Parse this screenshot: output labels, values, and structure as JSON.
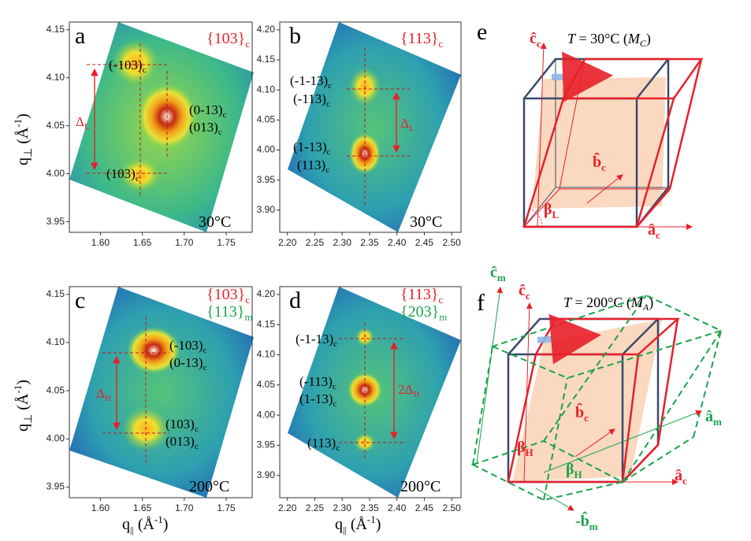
{
  "panels": [
    {
      "letter": "a",
      "family": "{103}",
      "family_sub": "c",
      "temperature": "30°C",
      "xlim": [
        1.563,
        1.781
      ],
      "ylim": [
        3.939,
        4.158
      ],
      "xticks": [
        {
          "value": 1.6,
          "label": "1.60"
        },
        1.65,
        {
          "value": 1.7,
          "label": "1.70"
        },
        1.75
      ],
      "yticks": [
        4.15,
        {
          "value": 4.1,
          "label": "4.10"
        },
        4.05,
        {
          "value": 4.0,
          "label": "4.00"
        },
        3.95
      ],
      "peaks": [
        {
          "label": "(-103)",
          "sub": "c"
        },
        {
          "label": "(0-13)",
          "sub": "c"
        },
        {
          "label": "(013)",
          "sub": "c"
        },
        {
          "label": "(103)",
          "sub": "c"
        }
      ],
      "spacing": {
        "label": "Δ",
        "sub": "L"
      }
    },
    {
      "letter": "b",
      "family": "{113}",
      "family_sub": "c",
      "temperature": "30°C",
      "xlim": [
        2.186,
        2.517
      ],
      "ylim": [
        3.863,
        4.213
      ],
      "xticks": [
        {
          "value": 2.2,
          "label": "2.20"
        },
        2.25,
        {
          "value": 2.3,
          "label": "2.30"
        },
        2.35,
        {
          "value": 2.4,
          "label": "2.40"
        },
        2.45,
        {
          "value": 2.5,
          "label": "2.50"
        }
      ],
      "yticks": [
        {
          "value": 4.2,
          "label": "4.20"
        },
        4.15,
        {
          "value": 4.1,
          "label": "4.10"
        },
        4.05,
        {
          "value": 4.0,
          "label": "4.00"
        },
        3.95,
        {
          "value": 3.9,
          "label": "3.90"
        }
      ],
      "peaks": [
        {
          "label": "(-1-13)",
          "sub": "c"
        },
        {
          "label": "(-113)",
          "sub": "c"
        },
        {
          "label": "(1-13)",
          "sub": "c"
        },
        {
          "label": "(113)",
          "sub": "c"
        }
      ],
      "spacing": {
        "label": "Δ",
        "sub": "L"
      }
    },
    {
      "letter": "c",
      "family": "{103}",
      "family_sub": "c",
      "family2": "{113}",
      "family2_sub": "m",
      "temperature": "200°C",
      "xlim": [
        1.563,
        1.781
      ],
      "ylim": [
        3.939,
        4.158
      ],
      "xticks": [
        {
          "value": 1.6,
          "label": "1.60"
        },
        1.65,
        {
          "value": 1.7,
          "label": "1.70"
        },
        1.75
      ],
      "yticks": [
        4.15,
        {
          "value": 4.1,
          "label": "4.10"
        },
        4.05,
        {
          "value": 4.0,
          "label": "4.00"
        },
        3.95
      ],
      "peaks": [
        {
          "label": "(-103)",
          "sub": "c"
        },
        {
          "label": "(0-13)",
          "sub": "c"
        },
        {
          "label": "(103)",
          "sub": "c"
        },
        {
          "label": "(013)",
          "sub": "c"
        }
      ],
      "spacing": {
        "label": "Δ",
        "sub": "H"
      }
    },
    {
      "letter": "d",
      "family": "{113}",
      "family_sub": "c",
      "family2": "{203}",
      "family2_sub": "m",
      "temperature": "200°C",
      "xlim": [
        2.186,
        2.517
      ],
      "ylim": [
        3.863,
        4.213
      ],
      "xticks": [
        {
          "value": 2.2,
          "label": "2.20"
        },
        2.25,
        {
          "value": 2.3,
          "label": "2.30"
        },
        2.35,
        {
          "value": 2.4,
          "label": "2.40"
        },
        2.45,
        {
          "value": 2.5,
          "label": "2.50"
        }
      ],
      "yticks": [
        {
          "value": 4.2,
          "label": "4.20"
        },
        4.15,
        {
          "value": 4.1,
          "label": "4.10"
        },
        4.05,
        {
          "value": 4.0,
          "label": "4.00"
        },
        3.95,
        {
          "value": 3.9,
          "label": "3.90"
        }
      ],
      "peaks": [
        {
          "label": "(-1-13)",
          "sub": "c"
        },
        {
          "label": "(-113)",
          "sub": "c"
        },
        {
          "label": "(1-13)",
          "sub": "c"
        },
        {
          "label": "(113)",
          "sub": "c"
        }
      ],
      "spacing": {
        "label": "2Δ",
        "sub": "H"
      }
    }
  ],
  "y_label": {
    "main": "q",
    "sub": "⊥",
    "unit": " (Å",
    "sup": "-1",
    "close": ")"
  },
  "x_label": {
    "main": "q",
    "sub": "||",
    "unit": " (Å",
    "sup": "-1",
    "close": ")"
  },
  "diagrams": [
    {
      "letter": "e",
      "temp": {
        "T": "T",
        "eq": " = 30°C (",
        "M": "M",
        "sub": "C",
        "close": ")"
      },
      "c_axis": {
        "base": "ĉ",
        "sub": "c"
      },
      "b_axis": {
        "base": "b̂",
        "sub": "c"
      },
      "a_axis": {
        "base": "â",
        "sub": "c"
      },
      "beta": {
        "base": "β",
        "sub": "L"
      }
    },
    {
      "letter": "f",
      "temp": {
        "T": "T",
        "eq": " = 200°C (",
        "M": "M",
        "sub": "A",
        "close": ")"
      },
      "cm_axis": {
        "base": "ĉ",
        "sub": "m"
      },
      "c_axis": {
        "base": "ĉ",
        "sub": "c"
      },
      "b_axis": {
        "base": "b̂",
        "sub": "c"
      },
      "am_axis": {
        "base": "â",
        "sub": "m"
      },
      "beta": {
        "base": "β",
        "sub": "H"
      },
      "beta_m": {
        "base": "β",
        "sub": "H"
      },
      "a_axis": {
        "base": "â",
        "sub": "c"
      },
      "bm_axis": {
        "base": "-b̂",
        "sub": "m"
      }
    }
  ]
}
